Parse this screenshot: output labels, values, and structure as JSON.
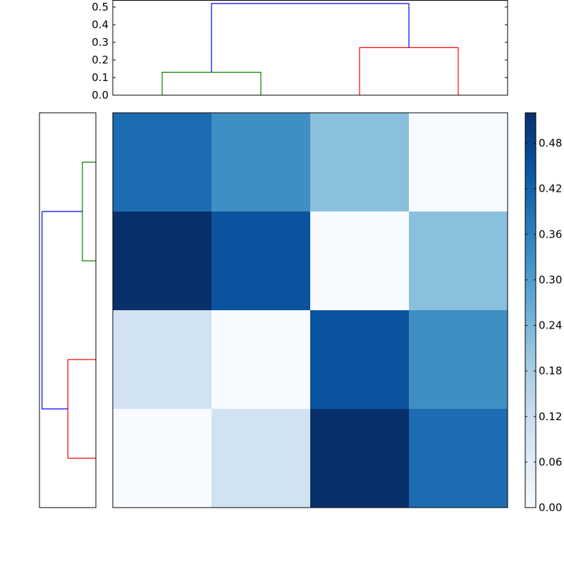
{
  "chart_data": [
    {
      "type": "dendrogram",
      "orientation": "top",
      "yticks": [
        "0.0",
        "0.1",
        "0.2",
        "0.3",
        "0.4",
        "0.5"
      ],
      "ylim": [
        0,
        0.54
      ],
      "leaf_count": 4,
      "links": [
        {
          "left": 0,
          "right": 1,
          "left_h": 0,
          "right_h": 0,
          "h": 0.13,
          "color": "#008000"
        },
        {
          "left": 2,
          "right": 3,
          "left_h": 0,
          "right_h": 0,
          "h": 0.27,
          "color": "#ff0000"
        },
        {
          "left": 0.5,
          "right": 2.5,
          "left_h": 0.13,
          "right_h": 0.27,
          "h": 0.52,
          "color": "#0000ff"
        }
      ]
    },
    {
      "type": "dendrogram",
      "orientation": "left",
      "leaf_count": 4,
      "links": [
        {
          "left": 0,
          "right": 1,
          "left_h": 0,
          "right_h": 0,
          "h": 0.13,
          "color": "#008000"
        },
        {
          "left": 2,
          "right": 3,
          "left_h": 0,
          "right_h": 0,
          "h": 0.27,
          "color": "#ff0000"
        },
        {
          "left": 0.5,
          "right": 2.5,
          "left_h": 0.13,
          "right_h": 0.27,
          "h": 0.52,
          "color": "#0000ff"
        }
      ]
    },
    {
      "type": "heatmap",
      "rows": 4,
      "cols": 4,
      "values": [
        [
          0.4,
          0.33,
          0.22,
          0.0
        ],
        [
          0.52,
          0.45,
          0.0,
          0.22
        ],
        [
          0.1,
          0.0,
          0.45,
          0.33
        ],
        [
          0.0,
          0.1,
          0.52,
          0.4
        ]
      ],
      "vmin": 0,
      "vmax": 0.52,
      "colormap": "Blues",
      "colorbar_ticks": [
        "0.00",
        "0.06",
        "0.12",
        "0.18",
        "0.24",
        "0.30",
        "0.36",
        "0.42",
        "0.48"
      ]
    }
  ]
}
